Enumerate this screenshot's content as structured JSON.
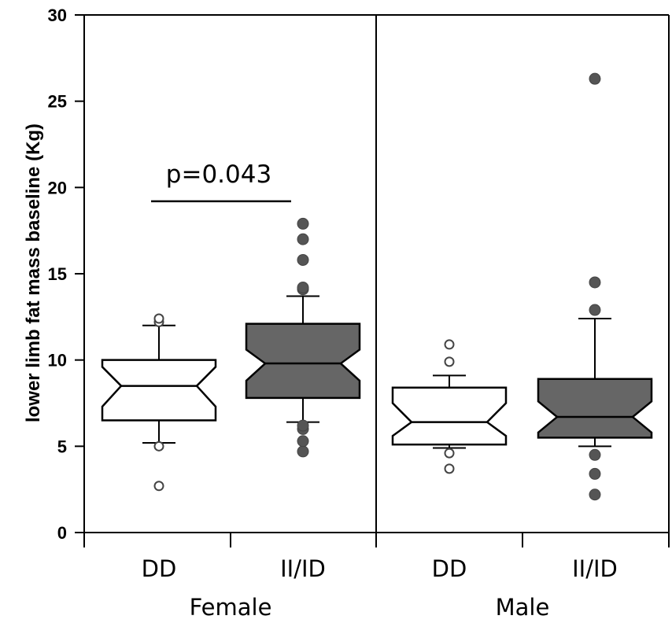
{
  "chart_data": {
    "type": "boxplot",
    "ylabel": "lower limb fat mass baseline (Kg)",
    "ylim": [
      0,
      30
    ],
    "yticks": [
      0,
      5,
      10,
      15,
      20,
      25,
      30
    ],
    "panels": [
      "Female",
      "Male"
    ],
    "groups": [
      {
        "panel": "Female",
        "label": "DD",
        "fill": "#ffffff",
        "whisker_low": 5.2,
        "q1": 6.5,
        "notch_low": 7.3,
        "median": 8.5,
        "notch_high": 9.6,
        "q3": 10.0,
        "whisker_high": 12.0,
        "outliers": [
          2.7,
          5.0,
          12.2,
          12.4
        ]
      },
      {
        "panel": "Female",
        "label": "II/ID",
        "fill": "#666666",
        "whisker_low": 6.4,
        "q1": 7.8,
        "notch_low": 8.8,
        "median": 9.8,
        "notch_high": 10.6,
        "q3": 12.1,
        "whisker_high": 13.7,
        "outliers": [
          4.7,
          5.3,
          6.0,
          6.2,
          14.1,
          14.2,
          15.8,
          17.0,
          17.9
        ]
      },
      {
        "panel": "Male",
        "label": "DD",
        "fill": "#ffffff",
        "whisker_low": 4.9,
        "q1": 5.1,
        "notch_low": 5.6,
        "median": 6.4,
        "notch_high": 7.5,
        "q3": 8.4,
        "whisker_high": 9.1,
        "outliers": [
          3.7,
          4.6,
          9.9,
          10.9
        ]
      },
      {
        "panel": "Male",
        "label": "II/ID",
        "fill": "#666666",
        "whisker_low": 5.0,
        "q1": 5.5,
        "notch_low": 5.8,
        "median": 6.7,
        "notch_high": 7.6,
        "q3": 8.9,
        "whisker_high": 12.4,
        "outliers": [
          2.2,
          3.4,
          4.5,
          12.9,
          14.5,
          26.3
        ]
      }
    ],
    "annotation": {
      "text": "p=0.043",
      "between": [
        "Female DD",
        "Female II/ID"
      ],
      "y": 19.2
    }
  }
}
